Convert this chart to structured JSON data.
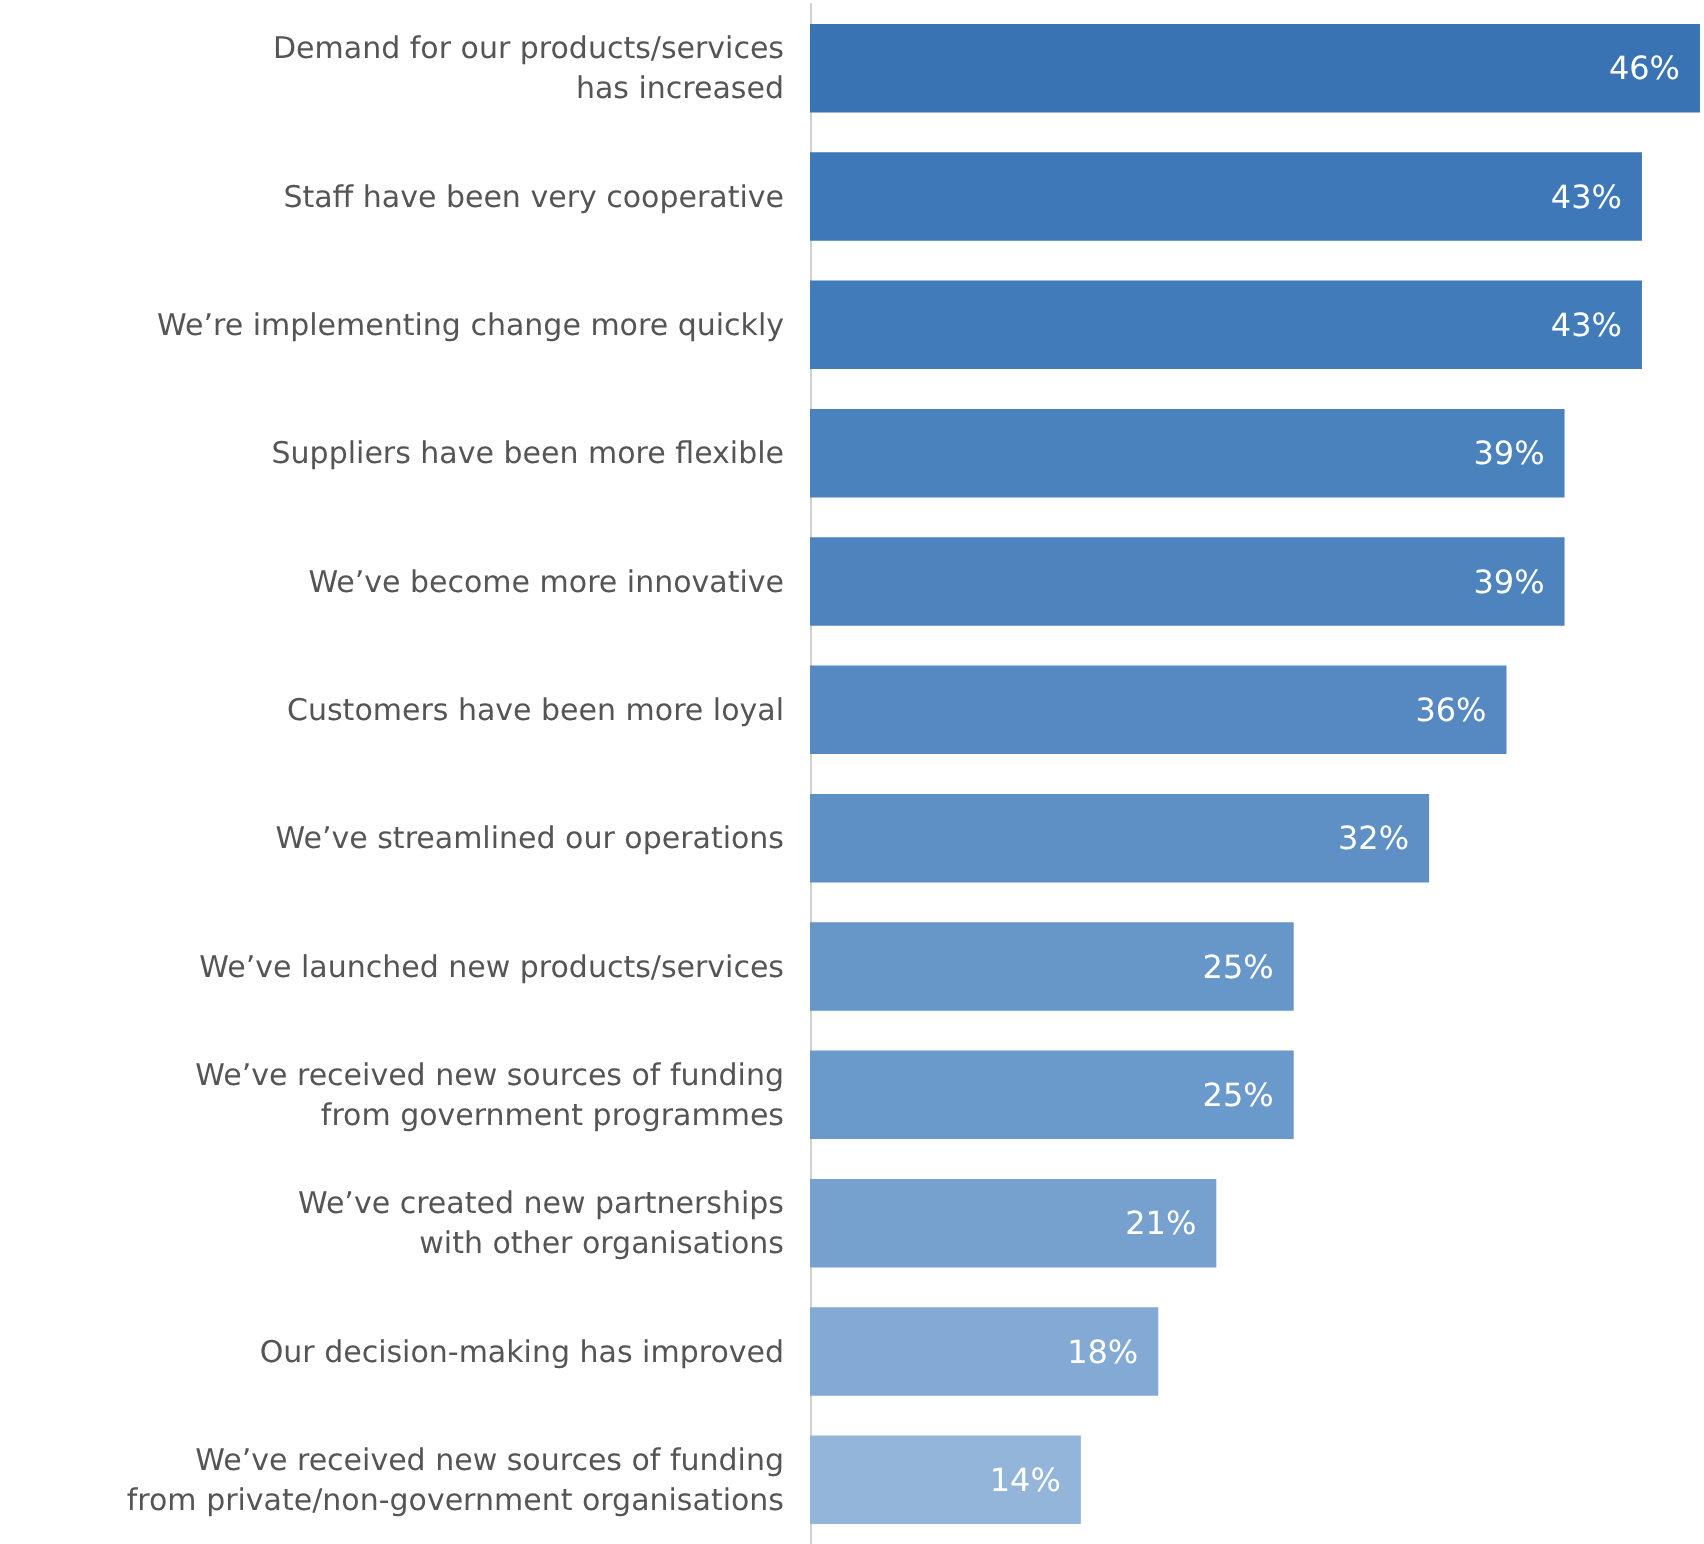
{
  "chart_data": {
    "type": "bar",
    "orientation": "horizontal",
    "categories": [
      "Demand for our products/services\nhas increased",
      "Staff have been very cooperative",
      "We’re implementing change more quickly",
      "Suppliers have been more flexible",
      "We’ve become more innovative",
      "Customers have been more loyal",
      "We’ve streamlined our operations",
      "We’ve launched new products/services",
      "We’ve received new sources of funding\nfrom government programmes",
      "We’ve created new partnerships\nwith other organisations",
      "Our decision-making has improved",
      "We’ve received new sources of funding\nfrom private/non-government organisations"
    ],
    "values": [
      46,
      43,
      43,
      39,
      39,
      36,
      32,
      25,
      25,
      21,
      18,
      14
    ],
    "value_labels": [
      "46%",
      "43%",
      "43%",
      "39%",
      "39%",
      "36%",
      "32%",
      "25%",
      "25%",
      "21%",
      "18%",
      "14%"
    ],
    "colors": [
      "#3a73b4",
      "#3e78b8",
      "#417bb9",
      "#4a82bd",
      "#4d84be",
      "#5689c1",
      "#5f90c5",
      "#6797c9",
      "#6a99cb",
      "#76a1cf",
      "#82aad4",
      "#93b5da"
    ]
  }
}
